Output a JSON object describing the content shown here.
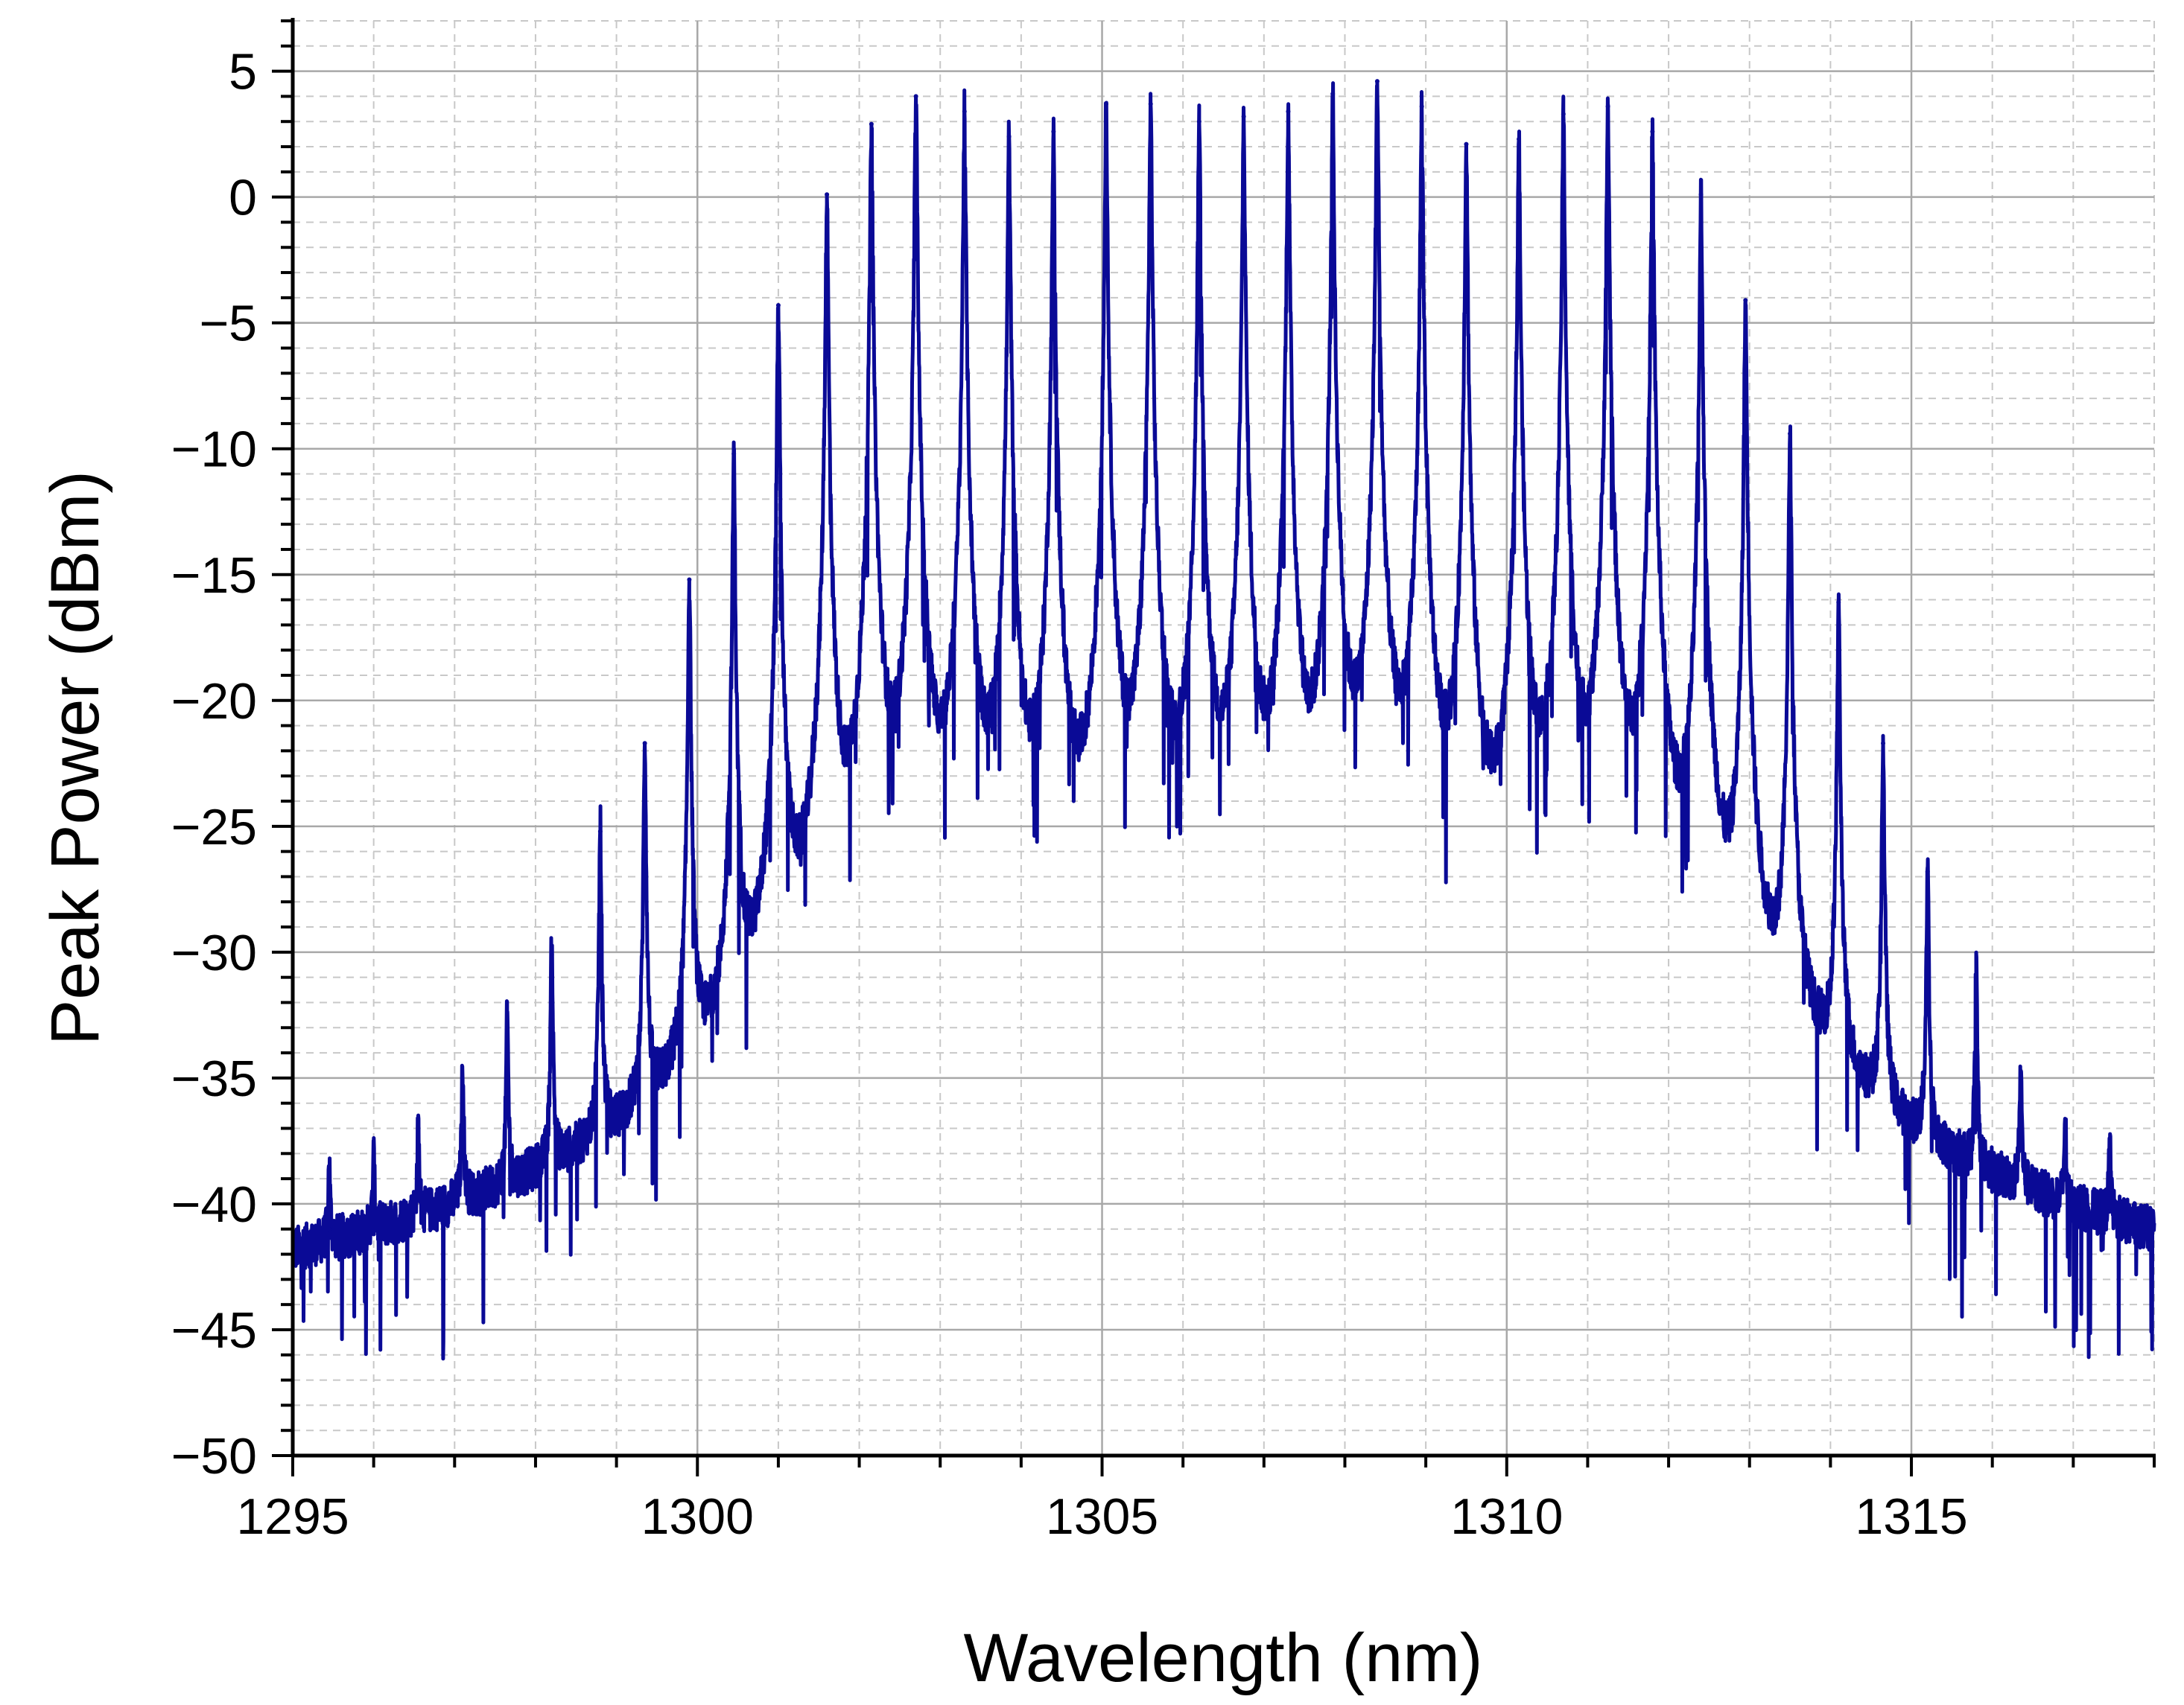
{
  "chart_data": {
    "type": "line",
    "title": "",
    "xlabel": "Wavelength (nm)",
    "ylabel": "Peak Power (dBm)",
    "xlim": [
      1295,
      1318
    ],
    "ylim": [
      -50,
      7
    ],
    "x_ticks": [
      "1295",
      "1300",
      "1305",
      "1310",
      "1315"
    ],
    "y_ticks": [
      "5",
      "0",
      "−5",
      "−10",
      "−15",
      "−20",
      "−25",
      "−30",
      "−35",
      "−40",
      "−45",
      "−50"
    ],
    "grid": "major solid, minor dashed",
    "legend": "none",
    "line_color": "#0a0a96",
    "noise_floor_dbm": -49,
    "series": [
      {
        "peaks": [
          {
            "x": 1295.45,
            "y": -41.0
          },
          {
            "x": 1296.0,
            "y": -41.2
          },
          {
            "x": 1296.55,
            "y": -39.2
          },
          {
            "x": 1297.1,
            "y": -35.7
          },
          {
            "x": 1297.65,
            "y": -33.3
          },
          {
            "x": 1298.2,
            "y": -30.1
          },
          {
            "x": 1298.8,
            "y": -25.2
          },
          {
            "x": 1299.35,
            "y": -21.7
          },
          {
            "x": 1299.9,
            "y": -15.2
          },
          {
            "x": 1300.45,
            "y": -10.2
          },
          {
            "x": 1301.0,
            "y": -4.3
          },
          {
            "x": 1301.6,
            "y": 0.1
          },
          {
            "x": 1302.15,
            "y": 2.9
          },
          {
            "x": 1302.7,
            "y": 4.0
          },
          {
            "x": 1303.3,
            "y": 3.4
          },
          {
            "x": 1303.85,
            "y": 2.4
          },
          {
            "x": 1304.4,
            "y": 2.6
          },
          {
            "x": 1305.05,
            "y": 3.7
          },
          {
            "x": 1305.6,
            "y": 3.7
          },
          {
            "x": 1306.2,
            "y": 3.0
          },
          {
            "x": 1306.75,
            "y": 3.2
          },
          {
            "x": 1307.3,
            "y": 3.4
          },
          {
            "x": 1307.85,
            "y": 4.1
          },
          {
            "x": 1308.4,
            "y": 4.6
          },
          {
            "x": 1308.95,
            "y": 3.6
          },
          {
            "x": 1309.5,
            "y": 2.1
          },
          {
            "x": 1310.15,
            "y": 2.3
          },
          {
            "x": 1310.7,
            "y": 3.3
          },
          {
            "x": 1311.25,
            "y": 3.6
          },
          {
            "x": 1311.8,
            "y": 2.6
          },
          {
            "x": 1312.4,
            "y": 0.1
          },
          {
            "x": 1312.95,
            "y": -4.1
          },
          {
            "x": 1313.5,
            "y": -9.4
          },
          {
            "x": 1314.1,
            "y": -16.1
          },
          {
            "x": 1314.65,
            "y": -21.7
          },
          {
            "x": 1315.2,
            "y": -26.8
          },
          {
            "x": 1315.8,
            "y": -31.2
          },
          {
            "x": 1316.35,
            "y": -35.8
          },
          {
            "x": 1316.9,
            "y": -38.9
          },
          {
            "x": 1317.45,
            "y": -40.3
          }
        ]
      }
    ]
  }
}
